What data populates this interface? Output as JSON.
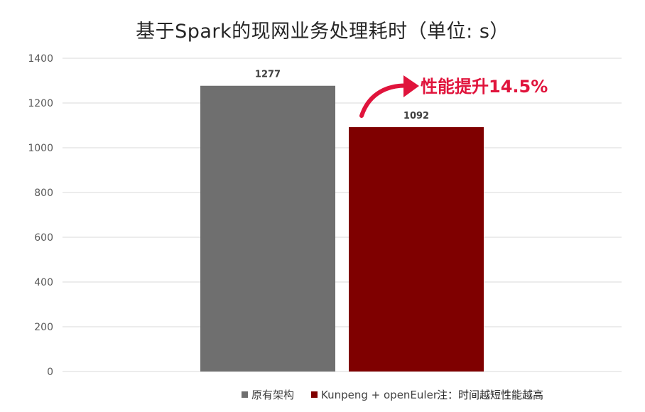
{
  "title": "基于Spark的现网业务处理耗时（单位: s）",
  "callout": {
    "text": "性能提升14.5%",
    "color": "#e0143c"
  },
  "note": "注：时间越短性能越高",
  "chart_data": {
    "type": "bar",
    "title": "基于Spark的现网业务处理耗时（单位: s）",
    "categories": [
      ""
    ],
    "series": [
      {
        "name": "原有架构",
        "values": [
          1277
        ],
        "color": "#6f6f6f"
      },
      {
        "name": "Kunpeng + openEuler",
        "values": [
          1092
        ],
        "color": "#7f0000"
      }
    ],
    "ylim": [
      0,
      1400
    ],
    "yticks": [
      0,
      200,
      400,
      600,
      800,
      1000,
      1200,
      1400
    ],
    "grid": true,
    "legend": "bottom"
  }
}
